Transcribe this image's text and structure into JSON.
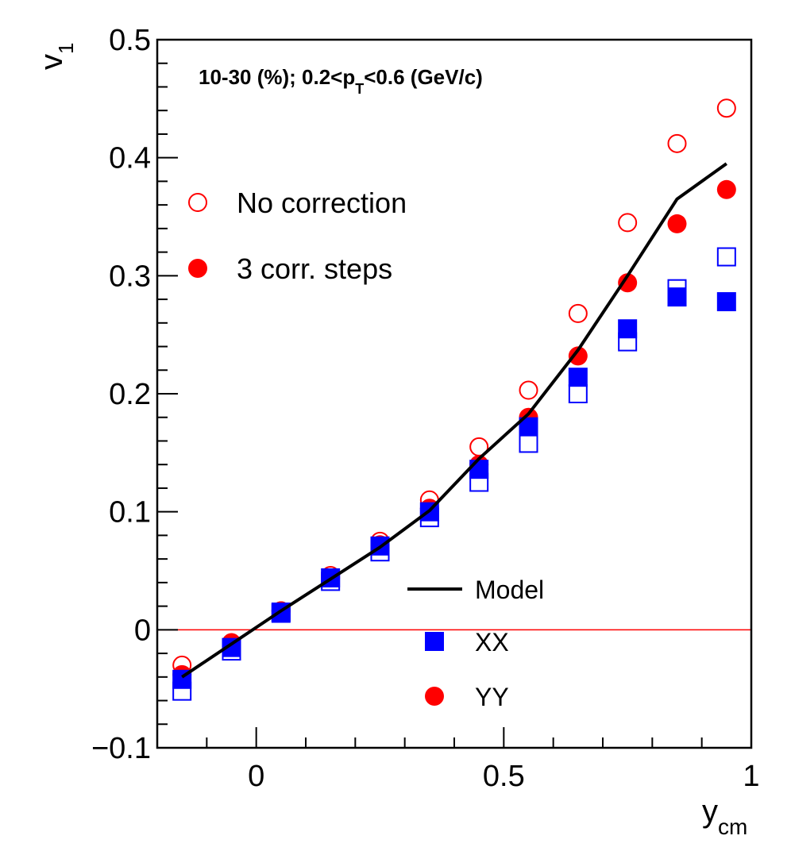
{
  "chart_data": {
    "type": "scatter",
    "annotation": {
      "prefix": "10-30 (%); 0.2<p",
      "sub": "T",
      "suffix": "<0.6 (GeV/c)"
    },
    "xlabel": {
      "base": "y",
      "sub": "cm"
    },
    "ylabel": {
      "base": "v",
      "sub": "1"
    },
    "xlim": [
      -0.2,
      1.0
    ],
    "ylim": [
      -0.1,
      0.5
    ],
    "x_ticks": [
      {
        "value": 0,
        "label": "0"
      },
      {
        "value": 0.5,
        "label": "0.5"
      },
      {
        "value": 1,
        "label": "1"
      }
    ],
    "y_ticks": [
      {
        "value": -0.1,
        "label": "−0.1"
      },
      {
        "value": 0,
        "label": "0"
      },
      {
        "value": 0.1,
        "label": "0.1"
      },
      {
        "value": 0.2,
        "label": "0.2"
      },
      {
        "value": 0.3,
        "label": "0.3"
      },
      {
        "value": 0.4,
        "label": "0.4"
      },
      {
        "value": 0.5,
        "label": "0.5"
      }
    ],
    "reference_line": {
      "y": 0,
      "color": "#ff0000"
    },
    "marker_legend": [
      {
        "label": "No correction",
        "marker": "open-circle",
        "color": "#ff0000"
      },
      {
        "label": "3 corr. steps",
        "marker": "filled-circle",
        "color": "#ff0000"
      }
    ],
    "series_legend": [
      {
        "label": "Model",
        "marker": "line",
        "color": "#000000"
      },
      {
        "label": "XX",
        "marker": "filled-square",
        "color": "#0000ff"
      },
      {
        "label": "YY",
        "marker": "filled-circle",
        "color": "#ff0000"
      }
    ],
    "x": [
      -0.15,
      -0.05,
      0.05,
      0.15,
      0.25,
      0.35,
      0.45,
      0.55,
      0.65,
      0.75,
      0.85,
      0.95
    ],
    "series": [
      {
        "marker": "open-circle",
        "color": "#ff0000",
        "values": [
          -0.03,
          -0.011,
          0.016,
          0.046,
          0.075,
          0.11,
          0.155,
          0.203,
          0.268,
          0.345,
          0.412,
          0.442
        ]
      },
      {
        "marker": "filled-circle",
        "color": "#ff0000",
        "values": [
          -0.038,
          -0.011,
          0.016,
          0.044,
          0.072,
          0.103,
          0.14,
          0.18,
          0.232,
          0.294,
          0.344,
          0.373
        ]
      },
      {
        "marker": "open-square",
        "color": "#0000ff",
        "values": [
          -0.052,
          -0.018,
          0.014,
          0.041,
          0.066,
          0.095,
          0.125,
          0.158,
          0.2,
          0.244,
          0.289,
          0.316
        ]
      },
      {
        "marker": "filled-square",
        "color": "#0000ff",
        "values": [
          -0.042,
          -0.015,
          0.015,
          0.044,
          0.071,
          0.1,
          0.136,
          0.172,
          0.214,
          0.255,
          0.282,
          0.278
        ]
      },
      {
        "marker": "line",
        "color": "#000000",
        "x": [
          -0.15,
          -0.05,
          0.05,
          0.15,
          0.25,
          0.35,
          0.45,
          0.55,
          0.65,
          0.75,
          0.85,
          0.95
        ],
        "values": [
          -0.04,
          -0.012,
          0.016,
          0.043,
          0.07,
          0.101,
          0.145,
          0.183,
          0.237,
          0.3,
          0.365,
          0.395
        ]
      }
    ]
  }
}
